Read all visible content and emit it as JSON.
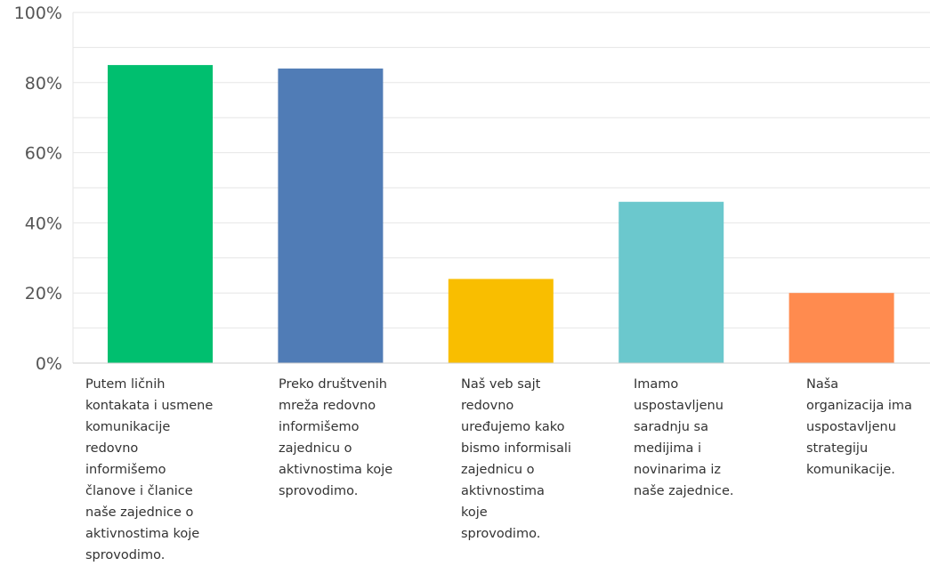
{
  "chart_data": {
    "type": "bar",
    "ylim": [
      0,
      100
    ],
    "y_ticks": [
      "0%",
      "20%",
      "40%",
      "60%",
      "80%",
      "100%"
    ],
    "y_tick_values": [
      0,
      20,
      40,
      60,
      80,
      100
    ],
    "grid": true,
    "categories": [
      "Putem  ličnih\nkontakata i usmene\nkomunikacije\nredovno\ninformišemo\nčlanove i članice\nnaše zajednice o\naktivnostima koje\nsprovodimo.",
      "Preko društvenih\nmreža redovno\ninformišemo\nzajednicu o\naktivnostima koje\nsprovodimo.",
      "Naš veb sajt\nredovno\nuređujemo kako\nbismo informisali\nzajednicu o\naktivnostima\nkoje\nsprovodimo.",
      "Imamo\nuspostavljenu\nsaradnju sa\nmedijima i\nnovinarima iz\nnaše zajednice.",
      "Naša\norganizacija ima\nuspostavljenu\nstrategiju\nkomunikacije."
    ],
    "values": [
      85,
      84,
      24,
      46,
      20
    ],
    "colors": [
      "#00bf6f",
      "#507cb6",
      "#f9be00",
      "#6bc8cd",
      "#ff8b4f"
    ]
  }
}
